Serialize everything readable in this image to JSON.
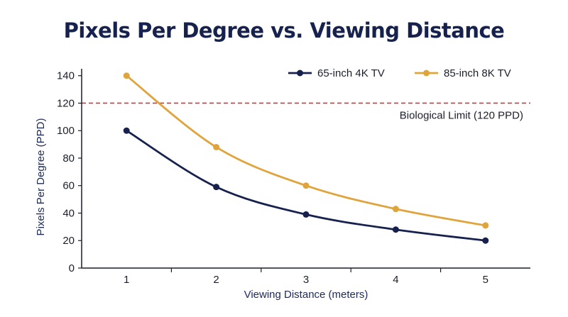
{
  "chart_data": {
    "type": "line",
    "title": "Pixels Per Degree vs. Viewing Distance",
    "xlabel": "Viewing Distance (meters)",
    "ylabel": "Pixels Per Degree (PPD)",
    "x": [
      1,
      2,
      3,
      4,
      5
    ],
    "xlim": [
      0.5,
      5.5
    ],
    "ylim": [
      0,
      145
    ],
    "yticks": [
      0,
      20,
      40,
      60,
      80,
      100,
      120,
      140
    ],
    "xticks": [
      1,
      2,
      3,
      4,
      5
    ],
    "legend_position": "top-right",
    "grid": false,
    "series": [
      {
        "name": "65-inch 4K TV",
        "color": "#16214d",
        "values": [
          100,
          59,
          39,
          28,
          20
        ]
      },
      {
        "name": "85-inch 8K TV",
        "color": "#e0a43c",
        "values": [
          140,
          88,
          60,
          43,
          31
        ]
      }
    ],
    "reference_line": {
      "y": 120,
      "label": "Biological Limit (120 PPD)",
      "color": "#d03a3a"
    }
  }
}
